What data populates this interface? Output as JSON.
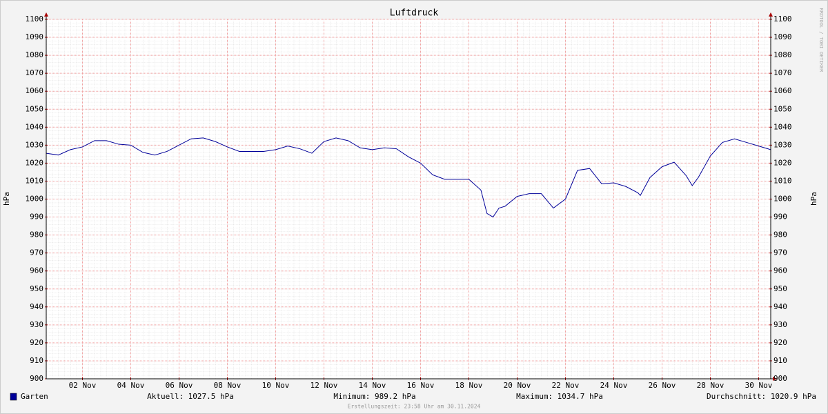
{
  "chart_data": {
    "type": "line",
    "title": "Luftdruck",
    "y_label": "hPa",
    "watermark": "RRDTOOL / TOBI OETIKER",
    "x": [
      1,
      1.5,
      2,
      2.5,
      3,
      3.5,
      4,
      4.5,
      5,
      5.5,
      6,
      6.5,
      7,
      7.5,
      8,
      8.5,
      9,
      9.5,
      10,
      10.5,
      11,
      11.5,
      12,
      12.5,
      13,
      13.5,
      14,
      14.5,
      15,
      15.5,
      16,
      16.5,
      17,
      17.5,
      18,
      18.5,
      19,
      19.25,
      19.5,
      19.75,
      20,
      20.5,
      21,
      21.5,
      22,
      22.5,
      23,
      23.5,
      24,
      24.5,
      25,
      25.5,
      25.6,
      26,
      26.5,
      27,
      27.5,
      27.75,
      28,
      28.5,
      29,
      29.5,
      30,
      30.5,
      31
    ],
    "series": [
      {
        "name": "Garten",
        "color": "#000099",
        "values": [
          1025.5,
          1024.5,
          1027.5,
          1029,
          1032.5,
          1032.5,
          1030.5,
          1030,
          1026,
          1024.5,
          1026.5,
          1030,
          1033.5,
          1034,
          1032,
          1029,
          1026.5,
          1026.5,
          1026.5,
          1027.5,
          1029.5,
          1028,
          1025.5,
          1032,
          1034,
          1032.5,
          1028.5,
          1027.5,
          1028.5,
          1028,
          1023.5,
          1020,
          1013.5,
          1011,
          1011,
          1011,
          1005,
          992,
          990,
          995,
          996,
          1001.5,
          1003,
          1003,
          995,
          1000,
          1016,
          1017,
          1008.5,
          1009,
          1007,
          1003.5,
          1002,
          1012,
          1018,
          1020.5,
          1013,
          1007.5,
          1012,
          1024,
          1031.5,
          1033.5,
          1031.5,
          1029.5,
          1027.5
        ]
      }
    ],
    "xlim": [
      1,
      31
    ],
    "xticks": [
      {
        "value": 2.5,
        "label": "02 Nov"
      },
      {
        "value": 4.5,
        "label": "04 Nov"
      },
      {
        "value": 6.5,
        "label": "06 Nov"
      },
      {
        "value": 8.5,
        "label": "08 Nov"
      },
      {
        "value": 10.5,
        "label": "10 Nov"
      },
      {
        "value": 12.5,
        "label": "12 Nov"
      },
      {
        "value": 14.5,
        "label": "14 Nov"
      },
      {
        "value": 16.5,
        "label": "16 Nov"
      },
      {
        "value": 18.5,
        "label": "18 Nov"
      },
      {
        "value": 20.5,
        "label": "20 Nov"
      },
      {
        "value": 22.5,
        "label": "22 Nov"
      },
      {
        "value": 24.5,
        "label": "24 Nov"
      },
      {
        "value": 26.5,
        "label": "26 Nov"
      },
      {
        "value": 28.5,
        "label": "28 Nov"
      },
      {
        "value": 30.5,
        "label": "30 Nov"
      }
    ],
    "ylim": [
      900,
      1100
    ],
    "yticks": [
      900,
      910,
      920,
      930,
      940,
      950,
      960,
      970,
      980,
      990,
      1000,
      1010,
      1020,
      1030,
      1040,
      1050,
      1060,
      1070,
      1080,
      1090,
      1100
    ],
    "grid": true,
    "legend_stats": [
      "Aktuell: 1027.5 hPa",
      "Minimum: 989.2 hPa",
      "Maximum: 1034.7 hPa",
      "Durchschnitt: 1020.9 hPa"
    ],
    "footer": "Erstellungszeit: 23:58 Uhr am 30.11.2024"
  }
}
